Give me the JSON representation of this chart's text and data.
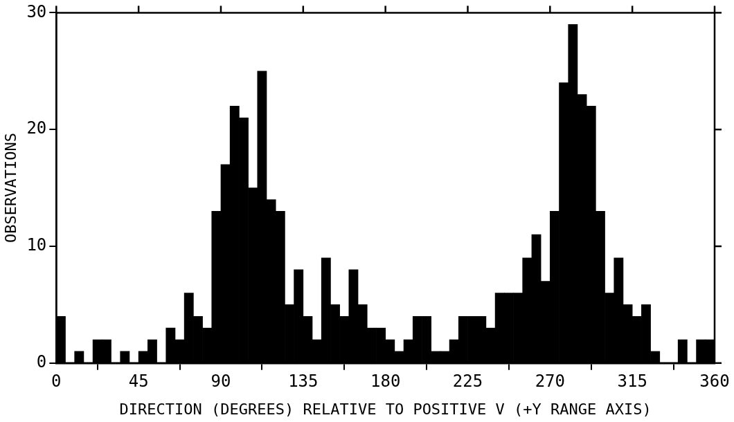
{
  "chart_data": {
    "type": "histogram",
    "xlabel": "DIRECTION (DEGREES) RELATIVE TO POSITIVE V (+Y RANGE AXIS)",
    "ylabel": "OBSERVATIONS",
    "bins": [
      0,
      5,
      10,
      15,
      20,
      25,
      30,
      35,
      40,
      45,
      50,
      55,
      60,
      65,
      70,
      75,
      80,
      85,
      90,
      95,
      100,
      105,
      110,
      115,
      120,
      125,
      130,
      135,
      140,
      145,
      150,
      155,
      160,
      165,
      170,
      175,
      180,
      185,
      190,
      195,
      200,
      205,
      210,
      215,
      220,
      225,
      230,
      235,
      240,
      245,
      250,
      255,
      260,
      265,
      270,
      275,
      280,
      285,
      290,
      295,
      300,
      305,
      310,
      315,
      320,
      325,
      330,
      335,
      340,
      345,
      350,
      355,
      360
    ],
    "values": [
      4,
      0,
      1,
      0,
      2,
      2,
      0,
      1,
      0,
      1,
      2,
      0,
      3,
      2,
      6,
      4,
      3,
      13,
      17,
      22,
      21,
      15,
      25,
      14,
      13,
      5,
      8,
      4,
      2,
      9,
      5,
      4,
      8,
      5,
      3,
      3,
      2,
      1,
      2,
      4,
      4,
      1,
      1,
      2,
      4,
      4,
      4,
      3,
      6,
      6,
      6,
      9,
      11,
      7,
      13,
      24,
      29,
      23,
      22,
      13,
      6,
      9,
      5,
      4,
      5,
      1,
      0,
      0,
      2,
      0,
      2,
      2
    ],
    "color": "#000000",
    "xlim": [
      0,
      360
    ],
    "xticks": [
      0,
      45,
      90,
      135,
      180,
      225,
      270,
      315,
      360
    ],
    "ylim": [
      0,
      30
    ],
    "yticks": [
      0,
      10,
      20,
      30
    ],
    "grid": false,
    "legend": false
  }
}
